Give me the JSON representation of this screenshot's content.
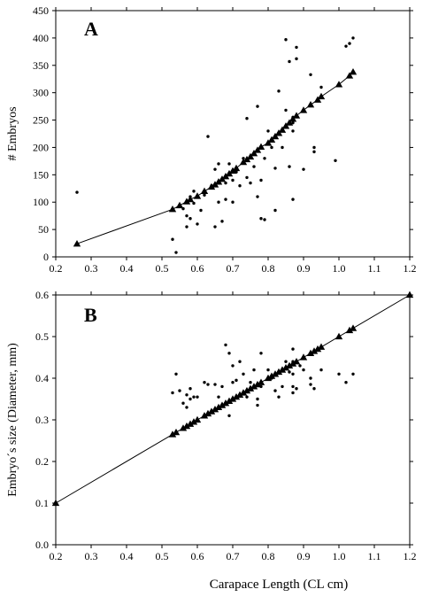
{
  "chart_data": [
    {
      "type": "scatter",
      "panel_label": "A",
      "xlabel": "",
      "ylabel": "# Embryos",
      "xlim": [
        0.2,
        1.2
      ],
      "ylim": [
        0,
        450
      ],
      "xticks": [
        "0.2",
        "0.3",
        "0.4",
        "0.5",
        "0.6",
        "0.7",
        "0.8",
        "0.9",
        "1.0",
        "1.1",
        "1.2"
      ],
      "yticks": [
        "0",
        "50",
        "100",
        "150",
        "200",
        "250",
        "300",
        "350",
        "400",
        "450"
      ],
      "series": [
        {
          "kind": "observed",
          "marker": "dot",
          "points": [
            [
              0.26,
              118
            ],
            [
              0.53,
              32
            ],
            [
              0.54,
              8
            ],
            [
              0.55,
              95
            ],
            [
              0.56,
              88
            ],
            [
              0.57,
              55
            ],
            [
              0.57,
              75
            ],
            [
              0.58,
              70
            ],
            [
              0.58,
              110
            ],
            [
              0.59,
              120
            ],
            [
              0.59,
              98
            ],
            [
              0.6,
              60
            ],
            [
              0.61,
              85
            ],
            [
              0.62,
              113
            ],
            [
              0.63,
              220
            ],
            [
              0.64,
              130
            ],
            [
              0.65,
              55
            ],
            [
              0.65,
              160
            ],
            [
              0.66,
              170
            ],
            [
              0.66,
              100
            ],
            [
              0.67,
              65
            ],
            [
              0.68,
              135
            ],
            [
              0.68,
              105
            ],
            [
              0.69,
              170
            ],
            [
              0.7,
              140
            ],
            [
              0.7,
              100
            ],
            [
              0.71,
              155
            ],
            [
              0.72,
              130
            ],
            [
              0.73,
              180
            ],
            [
              0.74,
              145
            ],
            [
              0.74,
              253
            ],
            [
              0.75,
              135
            ],
            [
              0.76,
              165
            ],
            [
              0.77,
              110
            ],
            [
              0.77,
              275
            ],
            [
              0.78,
              70
            ],
            [
              0.78,
              140
            ],
            [
              0.79,
              68
            ],
            [
              0.79,
              180
            ],
            [
              0.8,
              230
            ],
            [
              0.81,
              200
            ],
            [
              0.82,
              85
            ],
            [
              0.82,
              162
            ],
            [
              0.83,
              303
            ],
            [
              0.84,
              200
            ],
            [
              0.85,
              268
            ],
            [
              0.85,
              397
            ],
            [
              0.86,
              357
            ],
            [
              0.86,
              165
            ],
            [
              0.87,
              105
            ],
            [
              0.87,
              255
            ],
            [
              0.87,
              230
            ],
            [
              0.87,
              245
            ],
            [
              0.88,
              383
            ],
            [
              0.88,
              362
            ],
            [
              0.9,
              160
            ],
            [
              0.92,
              333
            ],
            [
              0.93,
              200
            ],
            [
              0.93,
              192
            ],
            [
              0.95,
              310
            ],
            [
              0.99,
              176
            ],
            [
              1.02,
              385
            ],
            [
              1.03,
              390
            ],
            [
              1.04,
              400
            ]
          ]
        },
        {
          "kind": "predicted",
          "marker": "triangle",
          "line": true,
          "points": [
            [
              0.26,
              24
            ],
            [
              0.53,
              87
            ],
            [
              0.55,
              94
            ],
            [
              0.57,
              101
            ],
            [
              0.58,
              105
            ],
            [
              0.6,
              111
            ],
            [
              0.62,
              120
            ],
            [
              0.64,
              128
            ],
            [
              0.65,
              132
            ],
            [
              0.66,
              137
            ],
            [
              0.67,
              142
            ],
            [
              0.68,
              147
            ],
            [
              0.69,
              152
            ],
            [
              0.7,
              157
            ],
            [
              0.71,
              162
            ],
            [
              0.73,
              173
            ],
            [
              0.74,
              178
            ],
            [
              0.75,
              183
            ],
            [
              0.76,
              189
            ],
            [
              0.77,
              195
            ],
            [
              0.78,
              201
            ],
            [
              0.8,
              208
            ],
            [
              0.81,
              214
            ],
            [
              0.82,
              220
            ],
            [
              0.83,
              226
            ],
            [
              0.84,
              232
            ],
            [
              0.85,
              239
            ],
            [
              0.86,
              245
            ],
            [
              0.87,
              252
            ],
            [
              0.88,
              258
            ],
            [
              0.9,
              268
            ],
            [
              0.92,
              278
            ],
            [
              0.94,
              287
            ],
            [
              0.95,
              293
            ],
            [
              1.0,
              315
            ],
            [
              1.03,
              331
            ],
            [
              1.04,
              338
            ]
          ]
        }
      ]
    },
    {
      "type": "scatter",
      "panel_label": "B",
      "xlabel": "Carapace Length (CL cm)",
      "ylabel": "Embryo´s size (Diameter, mm)",
      "xlim": [
        0.2,
        1.2
      ],
      "ylim": [
        0,
        0.6
      ],
      "xticks": [
        "0.2",
        "0.3",
        "0.4",
        "0.5",
        "0.6",
        "0.7",
        "0.8",
        "0.9",
        "1.0",
        "1.1",
        "1.2"
      ],
      "yticks": [
        "0.0",
        "0.1",
        "0.2",
        "0.3",
        "0.4",
        "0.5",
        "0.6"
      ],
      "series": [
        {
          "kind": "observed",
          "marker": "dot",
          "points": [
            [
              0.53,
              0.365
            ],
            [
              0.54,
              0.41
            ],
            [
              0.55,
              0.37
            ],
            [
              0.56,
              0.34
            ],
            [
              0.57,
              0.33
            ],
            [
              0.57,
              0.36
            ],
            [
              0.58,
              0.375
            ],
            [
              0.58,
              0.35
            ],
            [
              0.59,
              0.355
            ],
            [
              0.6,
              0.355
            ],
            [
              0.62,
              0.39
            ],
            [
              0.63,
              0.385
            ],
            [
              0.65,
              0.385
            ],
            [
              0.66,
              0.355
            ],
            [
              0.67,
              0.38
            ],
            [
              0.68,
              0.48
            ],
            [
              0.69,
              0.31
            ],
            [
              0.69,
              0.46
            ],
            [
              0.7,
              0.43
            ],
            [
              0.7,
              0.39
            ],
            [
              0.71,
              0.395
            ],
            [
              0.72,
              0.44
            ],
            [
              0.73,
              0.41
            ],
            [
              0.74,
              0.355
            ],
            [
              0.75,
              0.39
            ],
            [
              0.76,
              0.42
            ],
            [
              0.77,
              0.35
            ],
            [
              0.77,
              0.335
            ],
            [
              0.78,
              0.46
            ],
            [
              0.78,
              0.38
            ],
            [
              0.8,
              0.42
            ],
            [
              0.81,
              0.4
            ],
            [
              0.82,
              0.37
            ],
            [
              0.83,
              0.355
            ],
            [
              0.84,
              0.38
            ],
            [
              0.85,
              0.44
            ],
            [
              0.86,
              0.415
            ],
            [
              0.87,
              0.44
            ],
            [
              0.87,
              0.41
            ],
            [
              0.87,
              0.38
            ],
            [
              0.87,
              0.365
            ],
            [
              0.87,
              0.47
            ],
            [
              0.88,
              0.375
            ],
            [
              0.89,
              0.43
            ],
            [
              0.9,
              0.42
            ],
            [
              0.92,
              0.385
            ],
            [
              0.92,
              0.4
            ],
            [
              0.93,
              0.375
            ],
            [
              0.95,
              0.42
            ],
            [
              1.0,
              0.41
            ],
            [
              1.02,
              0.39
            ],
            [
              1.04,
              0.41
            ]
          ]
        },
        {
          "kind": "predicted",
          "marker": "triangle",
          "line": true,
          "points": [
            [
              0.2,
              0.1
            ],
            [
              0.53,
              0.265
            ],
            [
              0.54,
              0.27
            ],
            [
              0.56,
              0.28
            ],
            [
              0.57,
              0.285
            ],
            [
              0.58,
              0.29
            ],
            [
              0.59,
              0.295
            ],
            [
              0.6,
              0.3
            ],
            [
              0.62,
              0.31
            ],
            [
              0.63,
              0.315
            ],
            [
              0.64,
              0.32
            ],
            [
              0.65,
              0.325
            ],
            [
              0.66,
              0.33
            ],
            [
              0.67,
              0.335
            ],
            [
              0.68,
              0.34
            ],
            [
              0.69,
              0.345
            ],
            [
              0.7,
              0.35
            ],
            [
              0.71,
              0.355
            ],
            [
              0.72,
              0.36
            ],
            [
              0.73,
              0.365
            ],
            [
              0.74,
              0.37
            ],
            [
              0.75,
              0.375
            ],
            [
              0.76,
              0.38
            ],
            [
              0.77,
              0.385
            ],
            [
              0.78,
              0.39
            ],
            [
              0.8,
              0.4
            ],
            [
              0.81,
              0.405
            ],
            [
              0.82,
              0.41
            ],
            [
              0.83,
              0.415
            ],
            [
              0.84,
              0.42
            ],
            [
              0.85,
              0.425
            ],
            [
              0.86,
              0.43
            ],
            [
              0.87,
              0.435
            ],
            [
              0.88,
              0.44
            ],
            [
              0.9,
              0.45
            ],
            [
              0.92,
              0.46
            ],
            [
              0.93,
              0.465
            ],
            [
              0.94,
              0.47
            ],
            [
              0.95,
              0.475
            ],
            [
              1.0,
              0.5
            ],
            [
              1.03,
              0.515
            ],
            [
              1.04,
              0.52
            ],
            [
              1.2,
              0.6
            ]
          ]
        }
      ]
    }
  ]
}
